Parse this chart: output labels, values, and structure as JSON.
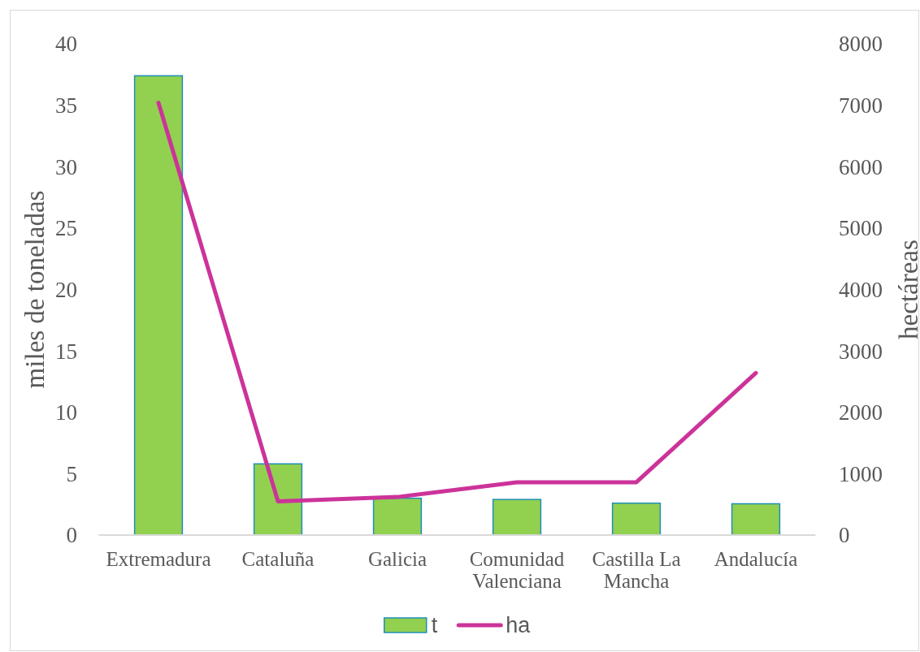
{
  "chart_data": {
    "type": "bar",
    "categories": [
      "Extremadura",
      "Cataluña",
      "Galicia",
      "Comunidad Valenciana",
      "Castilla La Mancha",
      "Andalucía"
    ],
    "series": [
      {
        "name": "t",
        "color": "#92d050",
        "values": [
          37.4,
          5.8,
          3.0,
          2.9,
          2.6,
          2.55
        ]
      },
      {
        "name": "ha",
        "type": "line",
        "axis": "y2",
        "color": "#cc3399",
        "values": [
          7040,
          550,
          620,
          860,
          860,
          2640
        ]
      }
    ],
    "ylabel": "miles de toneladas",
    "y2label": "hectáreas",
    "ylim": [
      0,
      40
    ],
    "yticks": [
      0,
      5,
      10,
      15,
      20,
      25,
      30,
      35,
      40
    ],
    "y2lim": [
      0,
      8000
    ],
    "y2ticks": [
      0,
      1000,
      2000,
      3000,
      4000,
      5000,
      6000,
      7000,
      8000
    ],
    "grid": false,
    "legend": "bottom"
  }
}
